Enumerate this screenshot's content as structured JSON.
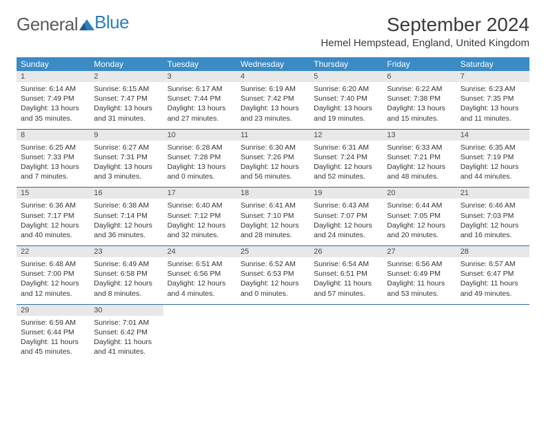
{
  "logo": {
    "part1": "General",
    "part2": "Blue"
  },
  "header": {
    "month_title": "September 2024",
    "location": "Hemel Hempstead, England, United Kingdom"
  },
  "colors": {
    "header_bg": "#3b8bc5",
    "daynum_bg": "#e8e8e8",
    "week_border": "#2c6aa0",
    "logo_blue": "#2c7fbf",
    "text": "#333333"
  },
  "day_names": [
    "Sunday",
    "Monday",
    "Tuesday",
    "Wednesday",
    "Thursday",
    "Friday",
    "Saturday"
  ],
  "weeks": [
    [
      {
        "n": "1",
        "sr": "Sunrise: 6:14 AM",
        "ss": "Sunset: 7:49 PM",
        "d1": "Daylight: 13 hours",
        "d2": "and 35 minutes."
      },
      {
        "n": "2",
        "sr": "Sunrise: 6:15 AM",
        "ss": "Sunset: 7:47 PM",
        "d1": "Daylight: 13 hours",
        "d2": "and 31 minutes."
      },
      {
        "n": "3",
        "sr": "Sunrise: 6:17 AM",
        "ss": "Sunset: 7:44 PM",
        "d1": "Daylight: 13 hours",
        "d2": "and 27 minutes."
      },
      {
        "n": "4",
        "sr": "Sunrise: 6:19 AM",
        "ss": "Sunset: 7:42 PM",
        "d1": "Daylight: 13 hours",
        "d2": "and 23 minutes."
      },
      {
        "n": "5",
        "sr": "Sunrise: 6:20 AM",
        "ss": "Sunset: 7:40 PM",
        "d1": "Daylight: 13 hours",
        "d2": "and 19 minutes."
      },
      {
        "n": "6",
        "sr": "Sunrise: 6:22 AM",
        "ss": "Sunset: 7:38 PM",
        "d1": "Daylight: 13 hours",
        "d2": "and 15 minutes."
      },
      {
        "n": "7",
        "sr": "Sunrise: 6:23 AM",
        "ss": "Sunset: 7:35 PM",
        "d1": "Daylight: 13 hours",
        "d2": "and 11 minutes."
      }
    ],
    [
      {
        "n": "8",
        "sr": "Sunrise: 6:25 AM",
        "ss": "Sunset: 7:33 PM",
        "d1": "Daylight: 13 hours",
        "d2": "and 7 minutes."
      },
      {
        "n": "9",
        "sr": "Sunrise: 6:27 AM",
        "ss": "Sunset: 7:31 PM",
        "d1": "Daylight: 13 hours",
        "d2": "and 3 minutes."
      },
      {
        "n": "10",
        "sr": "Sunrise: 6:28 AM",
        "ss": "Sunset: 7:28 PM",
        "d1": "Daylight: 13 hours",
        "d2": "and 0 minutes."
      },
      {
        "n": "11",
        "sr": "Sunrise: 6:30 AM",
        "ss": "Sunset: 7:26 PM",
        "d1": "Daylight: 12 hours",
        "d2": "and 56 minutes."
      },
      {
        "n": "12",
        "sr": "Sunrise: 6:31 AM",
        "ss": "Sunset: 7:24 PM",
        "d1": "Daylight: 12 hours",
        "d2": "and 52 minutes."
      },
      {
        "n": "13",
        "sr": "Sunrise: 6:33 AM",
        "ss": "Sunset: 7:21 PM",
        "d1": "Daylight: 12 hours",
        "d2": "and 48 minutes."
      },
      {
        "n": "14",
        "sr": "Sunrise: 6:35 AM",
        "ss": "Sunset: 7:19 PM",
        "d1": "Daylight: 12 hours",
        "d2": "and 44 minutes."
      }
    ],
    [
      {
        "n": "15",
        "sr": "Sunrise: 6:36 AM",
        "ss": "Sunset: 7:17 PM",
        "d1": "Daylight: 12 hours",
        "d2": "and 40 minutes."
      },
      {
        "n": "16",
        "sr": "Sunrise: 6:38 AM",
        "ss": "Sunset: 7:14 PM",
        "d1": "Daylight: 12 hours",
        "d2": "and 36 minutes."
      },
      {
        "n": "17",
        "sr": "Sunrise: 6:40 AM",
        "ss": "Sunset: 7:12 PM",
        "d1": "Daylight: 12 hours",
        "d2": "and 32 minutes."
      },
      {
        "n": "18",
        "sr": "Sunrise: 6:41 AM",
        "ss": "Sunset: 7:10 PM",
        "d1": "Daylight: 12 hours",
        "d2": "and 28 minutes."
      },
      {
        "n": "19",
        "sr": "Sunrise: 6:43 AM",
        "ss": "Sunset: 7:07 PM",
        "d1": "Daylight: 12 hours",
        "d2": "and 24 minutes."
      },
      {
        "n": "20",
        "sr": "Sunrise: 6:44 AM",
        "ss": "Sunset: 7:05 PM",
        "d1": "Daylight: 12 hours",
        "d2": "and 20 minutes."
      },
      {
        "n": "21",
        "sr": "Sunrise: 6:46 AM",
        "ss": "Sunset: 7:03 PM",
        "d1": "Daylight: 12 hours",
        "d2": "and 16 minutes."
      }
    ],
    [
      {
        "n": "22",
        "sr": "Sunrise: 6:48 AM",
        "ss": "Sunset: 7:00 PM",
        "d1": "Daylight: 12 hours",
        "d2": "and 12 minutes."
      },
      {
        "n": "23",
        "sr": "Sunrise: 6:49 AM",
        "ss": "Sunset: 6:58 PM",
        "d1": "Daylight: 12 hours",
        "d2": "and 8 minutes."
      },
      {
        "n": "24",
        "sr": "Sunrise: 6:51 AM",
        "ss": "Sunset: 6:56 PM",
        "d1": "Daylight: 12 hours",
        "d2": "and 4 minutes."
      },
      {
        "n": "25",
        "sr": "Sunrise: 6:52 AM",
        "ss": "Sunset: 6:53 PM",
        "d1": "Daylight: 12 hours",
        "d2": "and 0 minutes."
      },
      {
        "n": "26",
        "sr": "Sunrise: 6:54 AM",
        "ss": "Sunset: 6:51 PM",
        "d1": "Daylight: 11 hours",
        "d2": "and 57 minutes."
      },
      {
        "n": "27",
        "sr": "Sunrise: 6:56 AM",
        "ss": "Sunset: 6:49 PM",
        "d1": "Daylight: 11 hours",
        "d2": "and 53 minutes."
      },
      {
        "n": "28",
        "sr": "Sunrise: 6:57 AM",
        "ss": "Sunset: 6:47 PM",
        "d1": "Daylight: 11 hours",
        "d2": "and 49 minutes."
      }
    ],
    [
      {
        "n": "29",
        "sr": "Sunrise: 6:59 AM",
        "ss": "Sunset: 6:44 PM",
        "d1": "Daylight: 11 hours",
        "d2": "and 45 minutes."
      },
      {
        "n": "30",
        "sr": "Sunrise: 7:01 AM",
        "ss": "Sunset: 6:42 PM",
        "d1": "Daylight: 11 hours",
        "d2": "and 41 minutes."
      },
      null,
      null,
      null,
      null,
      null
    ]
  ]
}
